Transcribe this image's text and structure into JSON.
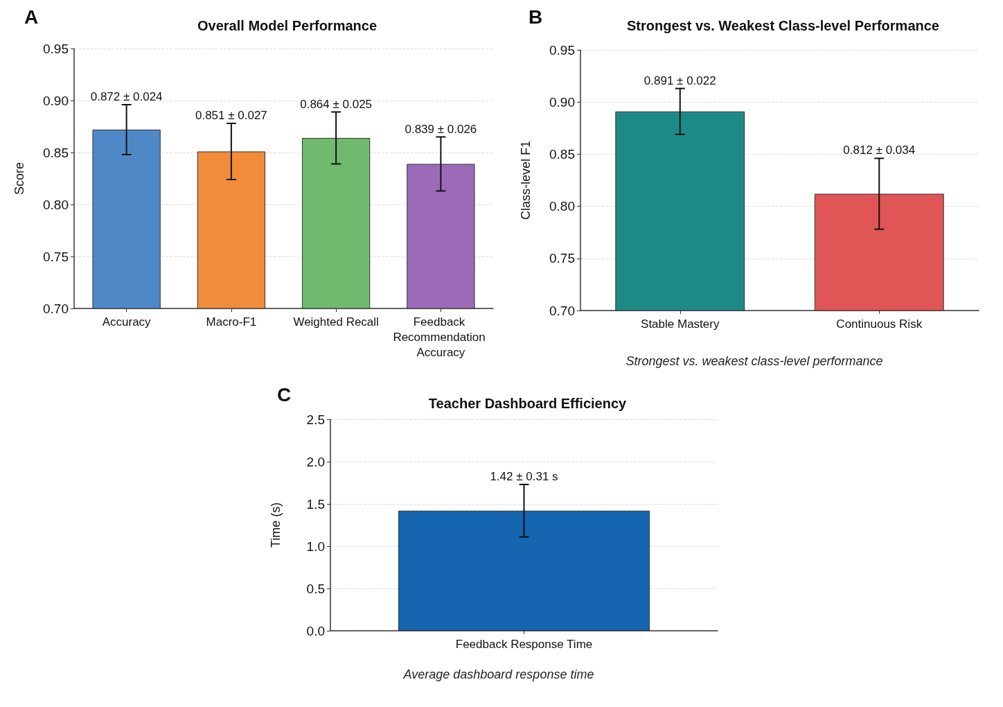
{
  "chart_data": [
    {
      "type": "bar",
      "title": "Overall Model Performance",
      "ylabel": "Score",
      "categories": [
        "Accuracy",
        "Macro-F1",
        "Weighted Recall",
        "Feedback Recommendation Accuracy"
      ],
      "values": [
        0.872,
        0.851,
        0.864,
        0.839
      ],
      "errors": [
        0.024,
        0.027,
        0.025,
        0.026
      ],
      "colors": [
        "#4f88c6",
        "#f08c3a",
        "#70b96f",
        "#9b6bb8"
      ],
      "value_labels": [
        "0.872 ± 0.024",
        "0.851 ± 0.027",
        "0.864 ± 0.025",
        "0.839 ± 0.026"
      ],
      "ylim": [
        0.7,
        0.95
      ],
      "yticks": [
        {
          "value": 0.7,
          "label": "0.70"
        },
        {
          "value": 0.75,
          "label": "0.75"
        },
        {
          "value": 0.8,
          "label": "0.80"
        },
        {
          "value": 0.85,
          "label": "0.85"
        },
        {
          "value": 0.9,
          "label": "0.90"
        },
        {
          "value": 0.95,
          "label": "0.95"
        }
      ],
      "grid": "y",
      "annotations": [
        "A"
      ]
    },
    {
      "type": "bar",
      "title": "Strongest vs. Weakest Class-level Performance",
      "ylabel": "Class-level F1",
      "categories": [
        "Stable Mastery",
        "Continuous Risk"
      ],
      "values": [
        0.891,
        0.812
      ],
      "errors": [
        0.022,
        0.034
      ],
      "colors": [
        "#1e8a87",
        "#e05555"
      ],
      "value_labels": [
        "0.891 ± 0.022",
        "0.812 ± 0.034"
      ],
      "ylim": [
        0.7,
        0.95
      ],
      "yticks": [
        {
          "value": 0.7,
          "label": "0.70"
        },
        {
          "value": 0.75,
          "label": "0.75"
        },
        {
          "value": 0.8,
          "label": "0.80"
        },
        {
          "value": 0.85,
          "label": "0.85"
        },
        {
          "value": 0.9,
          "label": "0.90"
        },
        {
          "value": 0.95,
          "label": "0.95"
        }
      ],
      "grid": "y",
      "annotations": [
        "B",
        "Strongest vs. weakest class-level performance"
      ]
    },
    {
      "type": "bar",
      "title": "Teacher Dashboard Efficiency",
      "ylabel": "Time (s)",
      "categories": [
        "Feedback Response Time"
      ],
      "values": [
        1.42
      ],
      "errors": [
        0.31
      ],
      "colors": [
        "#1565b0"
      ],
      "value_labels": [
        "1.42 ± 0.31 s"
      ],
      "ylim": [
        0,
        2.5
      ],
      "yticks": [
        {
          "value": 0,
          "label": "0.0"
        },
        {
          "value": 0.5,
          "label": "0.5"
        },
        {
          "value": 1,
          "label": "1.0"
        },
        {
          "value": 1.5,
          "label": "1.5"
        },
        {
          "value": 2,
          "label": "2.0"
        },
        {
          "value": 2.5,
          "label": "2.5"
        }
      ],
      "grid": "y",
      "annotations": [
        "C",
        "Average dashboard response time"
      ]
    }
  ]
}
